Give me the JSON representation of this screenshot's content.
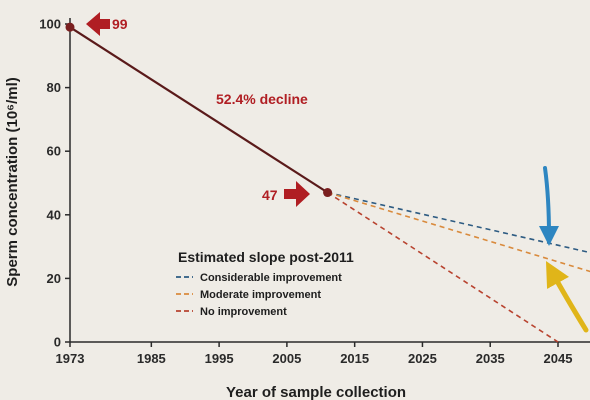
{
  "chart_data": {
    "type": "line",
    "xlabel": "Year of sample collection",
    "ylabel": "Sperm concentration (10⁶/ml)",
    "x_ticks": [
      "1973",
      "1985",
      "1995",
      "2005",
      "2015",
      "2025",
      "2035",
      "2045"
    ],
    "y_ticks": [
      "0",
      "20",
      "40",
      "60",
      "80",
      "100"
    ],
    "xlim": [
      1973,
      2050
    ],
    "ylim": [
      0,
      100
    ],
    "grid": false,
    "series": [
      {
        "name": "",
        "color": "#5a1a1a",
        "style": "solid",
        "x": [
          1973,
          2011
        ],
        "y": [
          99,
          47
        ]
      },
      {
        "name": "Considerable improvement",
        "color": "#2d5b82",
        "style": "dashed",
        "x": [
          2011,
          2050
        ],
        "y": [
          47,
          28
        ]
      },
      {
        "name": "Moderate improvement",
        "color": "#d98a3c",
        "style": "dashed",
        "x": [
          2011,
          2050
        ],
        "y": [
          47,
          22
        ]
      },
      {
        "name": "No improvement",
        "color": "#b8432f",
        "style": "dashed",
        "x": [
          2011,
          2045
        ],
        "y": [
          47,
          0
        ]
      }
    ],
    "points": [
      {
        "x": 1973,
        "y": 99
      },
      {
        "x": 2011,
        "y": 47
      }
    ],
    "annotations": {
      "start_value": "99",
      "end_value": "47",
      "decline": "52.4% decline"
    },
    "legend": {
      "title": "Estimated slope post-2011",
      "placement": "lower-middle"
    },
    "colors": {
      "background": "#efece6",
      "annotation_red": "#b01e23",
      "blue_arrow": "#2e86c1",
      "yellow_arrow": "#e0b519"
    }
  }
}
